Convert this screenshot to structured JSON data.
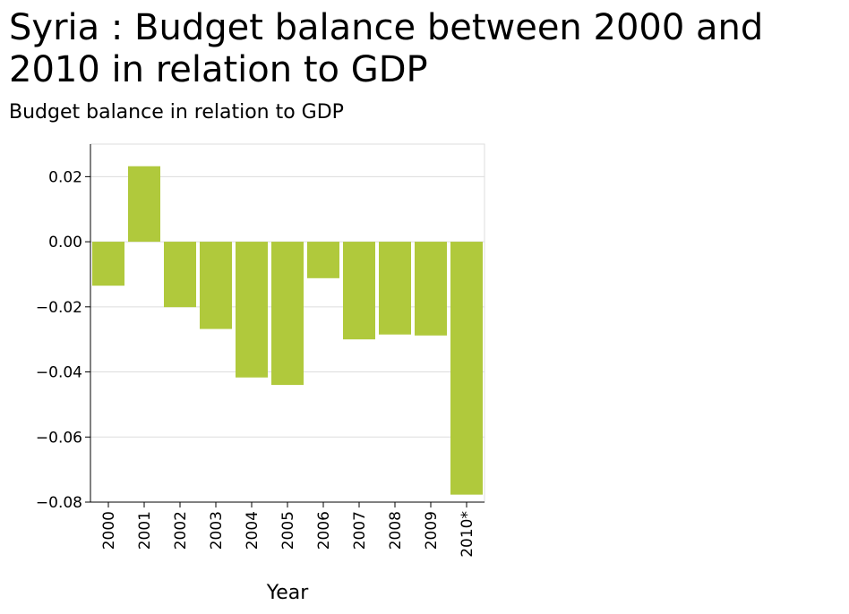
{
  "chart_data": {
    "type": "bar",
    "title": "Syria : Budget balance between 2000 and 2010 in relation to GDP",
    "ylabel": "Budget balance in relation to GDP",
    "xlabel": "Year",
    "categories": [
      "2000",
      "2001",
      "2002",
      "2003",
      "2004",
      "2005",
      "2006",
      "2007",
      "2008",
      "2009",
      "2010*"
    ],
    "values": [
      -0.0135,
      0.0232,
      -0.0201,
      -0.0268,
      -0.0417,
      -0.044,
      -0.0112,
      -0.03,
      -0.0285,
      -0.0288,
      -0.0777
    ],
    "ylim": [
      -0.08,
      0.03
    ],
    "yticks": [
      0.02,
      0.0,
      -0.02,
      -0.04,
      -0.06,
      -0.08
    ],
    "ytick_labels": [
      "0.02",
      "0.00",
      "−0.02",
      "−0.04",
      "−0.06",
      "−0.08"
    ],
    "grid": true,
    "bar_color": "#b0c93c",
    "grid_color": "#dddddd"
  }
}
